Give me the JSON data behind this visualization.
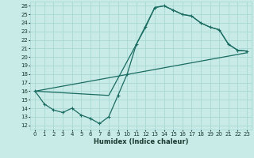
{
  "xlabel": "Humidex (Indice chaleur)",
  "bg_color": "#c8ebe8",
  "grid_color": "#a8d8d4",
  "line_color": "#1a6b60",
  "xlim": [
    -0.5,
    23.5
  ],
  "ylim": [
    11.5,
    26.5
  ],
  "xticks": [
    0,
    1,
    2,
    3,
    4,
    5,
    6,
    7,
    8,
    9,
    10,
    11,
    12,
    13,
    14,
    15,
    16,
    17,
    18,
    19,
    20,
    21,
    22,
    23
  ],
  "yticks": [
    12,
    13,
    14,
    15,
    16,
    17,
    18,
    19,
    20,
    21,
    22,
    23,
    24,
    25,
    26
  ],
  "curve1_x": [
    0,
    1,
    2,
    3,
    4,
    5,
    6,
    7,
    8,
    9,
    10,
    11,
    12,
    13,
    14,
    15,
    16,
    17,
    18,
    19,
    20,
    21,
    22,
    23
  ],
  "curve1_y": [
    16,
    14.5,
    13.8,
    13.5,
    14.0,
    13.2,
    12.8,
    12.2,
    13.0,
    15.5,
    18.0,
    21.5,
    23.5,
    25.8,
    26.0,
    25.5,
    25.0,
    24.8,
    24.0,
    23.5,
    23.2,
    21.5,
    20.8,
    20.7
  ],
  "curve2_x": [
    0,
    23
  ],
  "curve2_y": [
    16,
    20.5
  ],
  "curve3_x": [
    0,
    8,
    11,
    13,
    14,
    15,
    16,
    17,
    18,
    19,
    20,
    21,
    22,
    23
  ],
  "curve3_y": [
    16,
    15.5,
    21.5,
    25.8,
    26.0,
    25.5,
    25.0,
    24.8,
    24.0,
    23.5,
    23.2,
    21.5,
    20.8,
    20.7
  ]
}
